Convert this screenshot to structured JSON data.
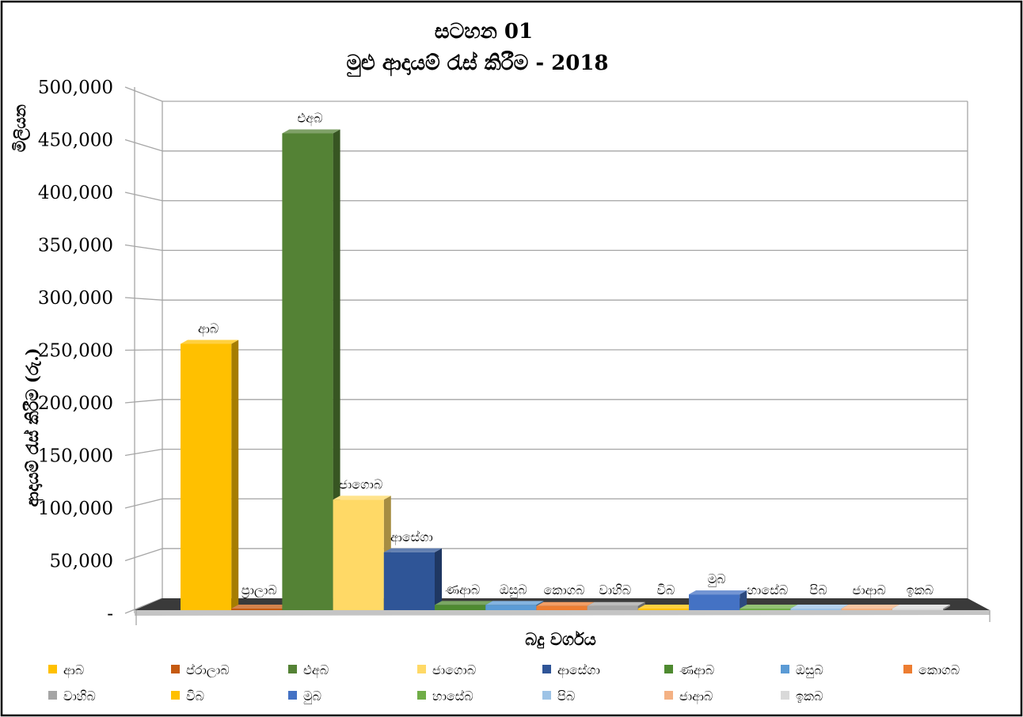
{
  "chart_data": {
    "type": "bar",
    "3d": true,
    "title": "සටහන 01",
    "subtitle": "මුළු ආදායම් රැස් කිරීම - 2018",
    "yunit": "මිලියන",
    "ylabel": "ආදායම් රැස් කිරීම (රු.)",
    "xlabel": "බදු වර්ගය",
    "ylim": [
      0,
      500000
    ],
    "yticks": [
      "500,000",
      "450,000",
      "400,000",
      "350,000",
      "300,000",
      "250,000",
      "200,000",
      "150,000",
      "100,000",
      "50,000",
      "-"
    ],
    "grid": true,
    "legend_position": "bottom",
    "series": [
      {
        "name": "ආබ",
        "value": 256000,
        "color": "#FFC000"
      },
      {
        "name": "ප්රාලාබ",
        "data_label": "ප්‍රාලාබ",
        "value": 1000,
        "color": "#C55A11"
      },
      {
        "name": "එඅබ",
        "value": 456000,
        "color": "#548235"
      },
      {
        "name": "ජාගොබ",
        "value": 108000,
        "color": "#FFD966"
      },
      {
        "name": "ආසේගා",
        "value": 58000,
        "color": "#2F5597"
      },
      {
        "name": "ණආබ",
        "value": 8000,
        "color": "#4E8A30"
      },
      {
        "name": "ඔසුබ",
        "value": 8000,
        "color": "#5B9BD5"
      },
      {
        "name": "කොගබ",
        "value": 7000,
        "color": "#ED7D31"
      },
      {
        "name": "වාහිබ",
        "value": 7000,
        "color": "#A5A5A5"
      },
      {
        "name": "විබ",
        "value": 2000,
        "color": "#FFC000"
      },
      {
        "name": "මුබ",
        "value": 18000,
        "color": "#4472C4"
      },
      {
        "name": "හාසේබ",
        "value": 2000,
        "color": "#70AD47"
      },
      {
        "name": "පිබ",
        "value": 1000,
        "color": "#9DC3E6"
      },
      {
        "name": "ජාආබ",
        "value": 500,
        "color": "#F4B183"
      },
      {
        "name": "ඉකබ",
        "value": 300,
        "color": "#D9D9D9"
      }
    ]
  }
}
